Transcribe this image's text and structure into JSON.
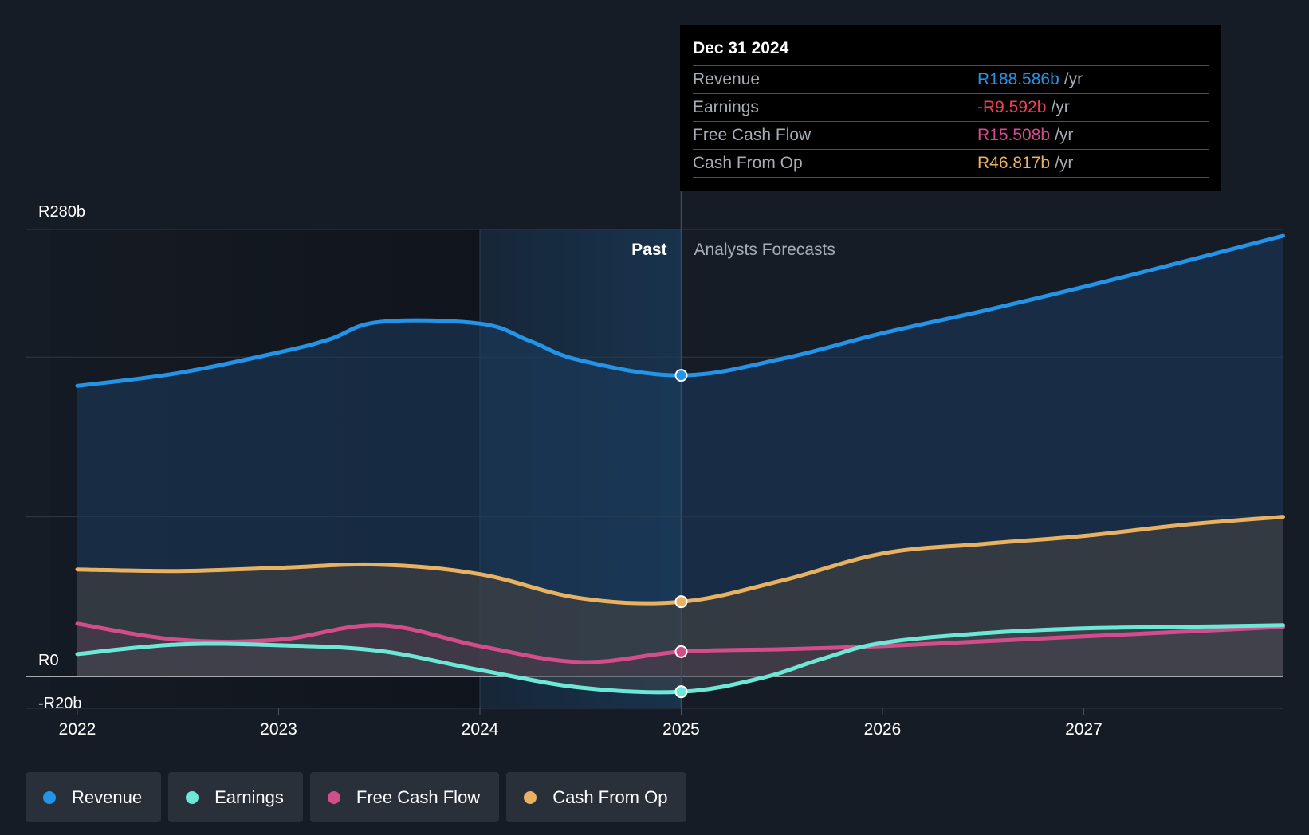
{
  "chart_data": {
    "type": "area",
    "currency_prefix": "R",
    "y_unit": "b",
    "ylim": [
      -20,
      280
    ],
    "x_range": [
      2021.74,
      2027.99
    ],
    "y_labels": [
      {
        "value": 280,
        "text": "R280b"
      },
      {
        "value": 0,
        "text": "R0"
      },
      {
        "value": -20,
        "text": "-R20b"
      }
    ],
    "gridlines": [
      280,
      200,
      100,
      0,
      -20
    ],
    "x_ticks": [
      {
        "value": 2022,
        "text": "2022"
      },
      {
        "value": 2023,
        "text": "2023"
      },
      {
        "value": 2024,
        "text": "2024"
      },
      {
        "value": 2025,
        "text": "2025"
      },
      {
        "value": 2026,
        "text": "2026"
      },
      {
        "value": 2027,
        "text": "2027"
      }
    ],
    "past_label": "Past",
    "forecast_label": "Analysts Forecasts",
    "divider_x": 2025.0,
    "highlight_start_x": 2024.0,
    "series": [
      {
        "name": "Revenue",
        "color": "#2394e8",
        "fill": "#1c3d5e",
        "points": [
          [
            2022.0,
            182
          ],
          [
            2022.5,
            190
          ],
          [
            2023.0,
            203
          ],
          [
            2023.25,
            211
          ],
          [
            2023.5,
            222
          ],
          [
            2024.0,
            221
          ],
          [
            2024.25,
            210
          ],
          [
            2024.5,
            198
          ],
          [
            2025.0,
            188.6
          ],
          [
            2025.5,
            199
          ],
          [
            2026.0,
            215
          ],
          [
            2026.5,
            229
          ],
          [
            2027.0,
            244
          ],
          [
            2027.5,
            260
          ],
          [
            2027.99,
            276
          ]
        ]
      },
      {
        "name": "Cash From Op",
        "color": "#e9b262",
        "fill": "#4b453f",
        "points": [
          [
            2022.0,
            67
          ],
          [
            2022.5,
            66
          ],
          [
            2023.0,
            68
          ],
          [
            2023.5,
            70
          ],
          [
            2024.0,
            64
          ],
          [
            2024.5,
            49
          ],
          [
            2025.0,
            46.8
          ],
          [
            2025.5,
            60
          ],
          [
            2026.0,
            77
          ],
          [
            2026.5,
            83
          ],
          [
            2027.0,
            88
          ],
          [
            2027.5,
            95
          ],
          [
            2027.99,
            100
          ]
        ]
      },
      {
        "name": "Free Cash Flow",
        "color": "#d44d8b",
        "fill": "#4a3a4c",
        "points": [
          [
            2022.0,
            33
          ],
          [
            2022.5,
            23
          ],
          [
            2023.0,
            23
          ],
          [
            2023.5,
            32
          ],
          [
            2024.0,
            19
          ],
          [
            2024.5,
            9
          ],
          [
            2025.0,
            15.5
          ],
          [
            2025.5,
            17
          ],
          [
            2026.0,
            19
          ],
          [
            2026.5,
            22
          ],
          [
            2027.0,
            25
          ],
          [
            2027.5,
            28
          ],
          [
            2027.99,
            31
          ]
        ]
      },
      {
        "name": "Earnings",
        "color": "#6ee8d6",
        "fill": "#40474f",
        "points": [
          [
            2022.0,
            14
          ],
          [
            2022.5,
            20
          ],
          [
            2023.0,
            19.5
          ],
          [
            2023.5,
            16
          ],
          [
            2024.0,
            4
          ],
          [
            2024.5,
            -7
          ],
          [
            2025.0,
            -9.6
          ],
          [
            2025.4,
            -1
          ],
          [
            2025.7,
            11
          ],
          [
            2026.0,
            21
          ],
          [
            2026.5,
            27
          ],
          [
            2027.0,
            30
          ],
          [
            2027.5,
            31
          ],
          [
            2027.99,
            32
          ]
        ]
      }
    ]
  },
  "tooltip": {
    "date": "Dec 31 2024",
    "unit": "/yr",
    "rows": [
      {
        "label": "Revenue",
        "value": "R188.586b",
        "color": "#2394e8"
      },
      {
        "label": "Earnings",
        "value": "-R9.592b",
        "color": "#ee3f55"
      },
      {
        "label": "Free Cash Flow",
        "value": "R15.508b",
        "color": "#d44d8b"
      },
      {
        "label": "Cash From Op",
        "value": "R46.817b",
        "color": "#e9b262"
      }
    ]
  },
  "legend": [
    {
      "label": "Revenue",
      "color": "#2394e8"
    },
    {
      "label": "Earnings",
      "color": "#6ee8d6"
    },
    {
      "label": "Free Cash Flow",
      "color": "#d44d8b"
    },
    {
      "label": "Cash From Op",
      "color": "#e9b262"
    }
  ]
}
